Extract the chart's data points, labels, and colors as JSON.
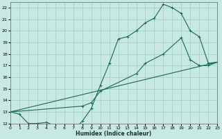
{
  "xlabel": "Humidex (Indice chaleur)",
  "bg_color": "#c8e8e4",
  "grid_color": "#a8d0cc",
  "line_color": "#1a6655",
  "xlim": [
    0,
    23
  ],
  "ylim": [
    12,
    22.5
  ],
  "yticks": [
    12,
    13,
    14,
    15,
    16,
    17,
    18,
    19,
    20,
    21,
    22
  ],
  "xticks": [
    0,
    1,
    2,
    3,
    4,
    5,
    6,
    7,
    8,
    9,
    10,
    11,
    12,
    13,
    14,
    15,
    16,
    17,
    18,
    19,
    20,
    21,
    22,
    23
  ],
  "line1_x": [
    0,
    1,
    2,
    3,
    4,
    5,
    6,
    7,
    8,
    9,
    10,
    11,
    12,
    13,
    14,
    15,
    16,
    17,
    18,
    19,
    20,
    21,
    22,
    23
  ],
  "line1_y": [
    13,
    12.8,
    12.0,
    12.0,
    12.1,
    11.8,
    11.6,
    11.4,
    12.2,
    13.3,
    15.3,
    17.2,
    19.3,
    19.5,
    20.0,
    20.7,
    21.1,
    22.3,
    22.0,
    21.5,
    20.0,
    19.5,
    17.2,
    17.3
  ],
  "line2_x": [
    0,
    8,
    9,
    10,
    14,
    15,
    17,
    19,
    20,
    21,
    22,
    23
  ],
  "line2_y": [
    13,
    13.5,
    13.8,
    14.8,
    16.3,
    17.2,
    18.0,
    19.4,
    17.5,
    17.0,
    17.0,
    17.3
  ],
  "line3_x": [
    0,
    23
  ],
  "line3_y": [
    13,
    17.3
  ]
}
